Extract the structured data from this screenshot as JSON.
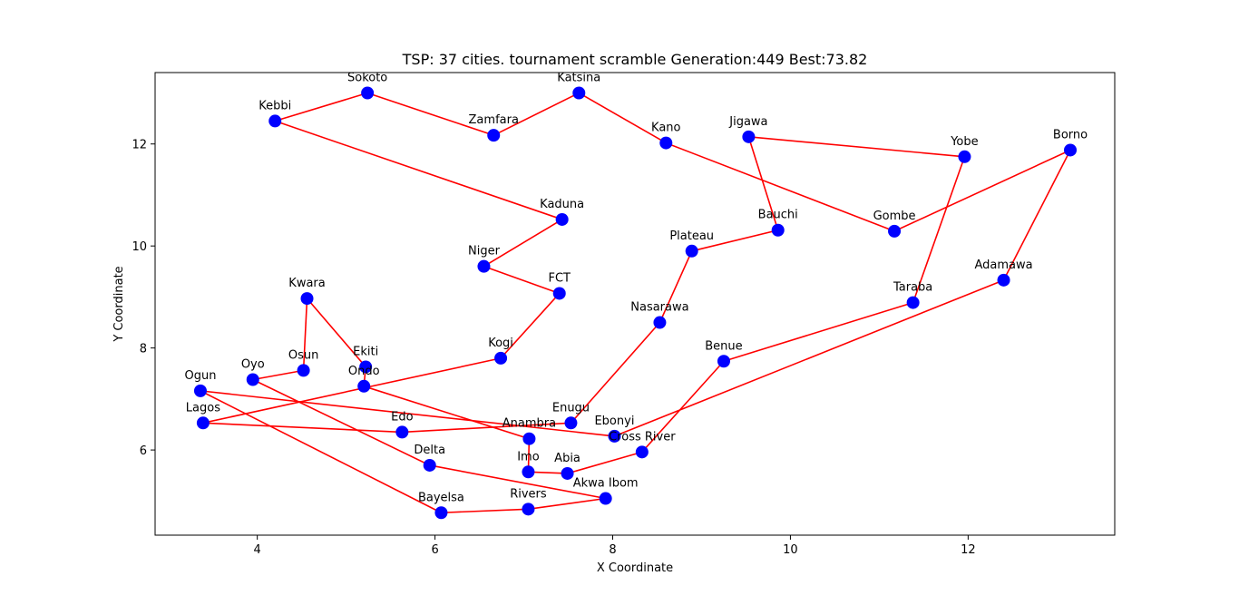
{
  "chart_data": {
    "type": "scatter",
    "title": "TSP: 37 cities. tournament scramble Generation:449 Best:73.82",
    "xlabel": "X Coordinate",
    "ylabel": "Y Coordinate",
    "xlim": [
      2.85,
      13.65
    ],
    "ylim": [
      4.33,
      13.4
    ],
    "xticks": [
      4,
      6,
      8,
      10,
      12
    ],
    "yticks": [
      6,
      8,
      10,
      12
    ],
    "grid": false,
    "colors": {
      "route": "#ff0000",
      "city": "#0000ff",
      "axes": "#000000"
    },
    "cities": [
      {
        "name": "Kebbi",
        "x": 4.2,
        "y": 12.45
      },
      {
        "name": "Sokoto",
        "x": 5.24,
        "y": 13.0
      },
      {
        "name": "Zamfara",
        "x": 6.66,
        "y": 12.17
      },
      {
        "name": "Katsina",
        "x": 7.62,
        "y": 13.0
      },
      {
        "name": "Kano",
        "x": 8.6,
        "y": 12.02
      },
      {
        "name": "Gombe",
        "x": 11.17,
        "y": 10.29
      },
      {
        "name": "Borno",
        "x": 13.15,
        "y": 11.88
      },
      {
        "name": "Adamawa",
        "x": 12.4,
        "y": 9.33
      },
      {
        "name": "Ebonyi",
        "x": 8.02,
        "y": 6.27
      },
      {
        "name": "Ogun",
        "x": 3.36,
        "y": 7.16
      },
      {
        "name": "Bayelsa",
        "x": 6.07,
        "y": 4.77
      },
      {
        "name": "Rivers",
        "x": 7.05,
        "y": 4.84
      },
      {
        "name": "Akwa Ibom",
        "x": 7.92,
        "y": 5.05
      },
      {
        "name": "Delta",
        "x": 5.94,
        "y": 5.7
      },
      {
        "name": "Oyo",
        "x": 3.95,
        "y": 7.38
      },
      {
        "name": "Osun",
        "x": 4.52,
        "y": 7.56
      },
      {
        "name": "Kwara",
        "x": 4.56,
        "y": 8.97
      },
      {
        "name": "Ekiti",
        "x": 5.22,
        "y": 7.63
      },
      {
        "name": "Ondo",
        "x": 5.2,
        "y": 7.25
      },
      {
        "name": "Anambra",
        "x": 7.06,
        "y": 6.22
      },
      {
        "name": "Imo",
        "x": 7.05,
        "y": 5.57
      },
      {
        "name": "Abia",
        "x": 7.49,
        "y": 5.54
      },
      {
        "name": "Cross River",
        "x": 8.33,
        "y": 5.96
      },
      {
        "name": "Benue",
        "x": 9.25,
        "y": 7.74
      },
      {
        "name": "Taraba",
        "x": 11.38,
        "y": 8.89
      },
      {
        "name": "Yobe",
        "x": 11.96,
        "y": 11.75
      },
      {
        "name": "Jigawa",
        "x": 9.53,
        "y": 12.14
      },
      {
        "name": "Bauchi",
        "x": 9.86,
        "y": 10.31
      },
      {
        "name": "Plateau",
        "x": 8.89,
        "y": 9.9
      },
      {
        "name": "Nasarawa",
        "x": 8.53,
        "y": 8.5
      },
      {
        "name": "Enugu",
        "x": 7.53,
        "y": 6.53
      },
      {
        "name": "Edo",
        "x": 5.63,
        "y": 6.35
      },
      {
        "name": "Lagos",
        "x": 3.39,
        "y": 6.53
      },
      {
        "name": "Kogi",
        "x": 6.74,
        "y": 7.8
      },
      {
        "name": "FCT",
        "x": 7.4,
        "y": 9.07
      },
      {
        "name": "Niger",
        "x": 6.55,
        "y": 9.6
      },
      {
        "name": "Kaduna",
        "x": 7.43,
        "y": 10.52
      }
    ]
  }
}
